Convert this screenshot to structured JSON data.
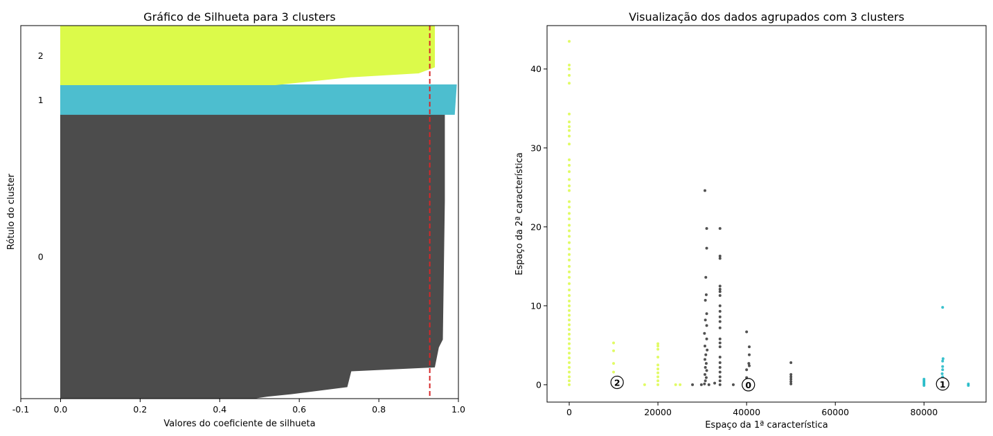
{
  "chart_data": [
    {
      "type": "bar",
      "title": "Gráfico de Silhueta para 3 clusters",
      "xlabel": "Valores do coeficiente de silhueta",
      "ylabel": "Rótulo do cluster",
      "xlim": [
        -0.1,
        1.0
      ],
      "xticks": [
        "-0.1",
        "0.0",
        "0.2",
        "0.4",
        "0.6",
        "0.8",
        "1.0"
      ],
      "xtick_values": [
        -0.1,
        0.0,
        0.2,
        0.4,
        0.6,
        0.8,
        1.0
      ],
      "average_silhouette": 0.928,
      "average_line_color": "#d62728",
      "clusters": [
        {
          "label": "0",
          "color": "#4c4c4c",
          "y_start": 0,
          "y_end": 720,
          "profile": [
            [
              0.48,
              0
            ],
            [
              0.52,
              6
            ],
            [
              0.58,
              12
            ],
            [
              0.72,
              30
            ],
            [
              0.73,
              70
            ],
            [
              0.94,
              80
            ],
            [
              0.95,
              130
            ],
            [
              0.96,
              150
            ],
            [
              0.965,
              500
            ],
            [
              0.965,
              720
            ]
          ]
        },
        {
          "label": "1",
          "color": "#4dbecf",
          "y_start": 720,
          "y_end": 795,
          "profile": [
            [
              0.99,
              0
            ],
            [
              0.995,
              75
            ]
          ]
        },
        {
          "label": "2",
          "color": "#dcfa4a",
          "y_start": 795,
          "y_end": 945,
          "profile": [
            [
              0.54,
              0
            ],
            [
              0.73,
              20
            ],
            [
              0.9,
              30
            ],
            [
              0.94,
              45
            ],
            [
              0.94,
              150
            ]
          ]
        }
      ],
      "ylim": [
        0,
        945
      ]
    },
    {
      "type": "scatter",
      "title": "Visualização dos dados agrupados com 3 clusters",
      "xlabel": "Espaço da 1ª característica",
      "ylabel": "Espaço da 2ª característica",
      "xlim": [
        -5000,
        94000
      ],
      "ylim": [
        -2.2,
        45.5
      ],
      "xticks": [
        "0",
        "20000",
        "40000",
        "60000",
        "80000"
      ],
      "xtick_values": [
        0,
        20000,
        40000,
        60000,
        80000
      ],
      "yticks": [
        "0",
        "10",
        "20",
        "30",
        "40"
      ],
      "ytick_values": [
        0,
        10,
        20,
        30,
        40
      ],
      "series": [
        {
          "cluster": "2",
          "color": "#dcfa4a",
          "points": [
            [
              0,
              43.5
            ],
            [
              0,
              40.5
            ],
            [
              0,
              40
            ],
            [
              0,
              39.2
            ],
            [
              0,
              38.2
            ],
            [
              0,
              34.3
            ],
            [
              0,
              33.3
            ],
            [
              0,
              32.7
            ],
            [
              0,
              32.2
            ],
            [
              0,
              31.5
            ],
            [
              0,
              30.5
            ],
            [
              0,
              28.5
            ],
            [
              0,
              27.8
            ],
            [
              0,
              27
            ],
            [
              0,
              26
            ],
            [
              0,
              25.2
            ],
            [
              0,
              24.6
            ],
            [
              0,
              23.2
            ],
            [
              0,
              22.5
            ],
            [
              0,
              21.7
            ],
            [
              0,
              21
            ],
            [
              0,
              20.2
            ],
            [
              0,
              19.5
            ],
            [
              0,
              18.8
            ],
            [
              0,
              18
            ],
            [
              0,
              17.2
            ],
            [
              0,
              16.5
            ],
            [
              0,
              15.8
            ],
            [
              0,
              15
            ],
            [
              0,
              14.3
            ],
            [
              0,
              13.6
            ],
            [
              0,
              12.8
            ],
            [
              0,
              12
            ],
            [
              0,
              11.3
            ],
            [
              0,
              10.6
            ],
            [
              0,
              10
            ],
            [
              0,
              9.4
            ],
            [
              0,
              8.8
            ],
            [
              0,
              8.2
            ],
            [
              0,
              7.6
            ],
            [
              0,
              7
            ],
            [
              0,
              6.4
            ],
            [
              0,
              5.8
            ],
            [
              0,
              5.2
            ],
            [
              0,
              4.6
            ],
            [
              0,
              4
            ],
            [
              0,
              3.4
            ],
            [
              0,
              2.8
            ],
            [
              0,
              2.2
            ],
            [
              0,
              1.6
            ],
            [
              0,
              1
            ],
            [
              0,
              0.5
            ],
            [
              0,
              0
            ],
            [
              10000,
              5.3
            ],
            [
              10000,
              4.3
            ],
            [
              10000,
              2.7
            ],
            [
              10000,
              1.6
            ],
            [
              10000,
              0.3
            ],
            [
              17000,
              0
            ],
            [
              20000,
              5.2
            ],
            [
              20000,
              4.9
            ],
            [
              20000,
              4.5
            ],
            [
              20000,
              3.5
            ],
            [
              20000,
              2.5
            ],
            [
              20000,
              2
            ],
            [
              20000,
              1.5
            ],
            [
              20000,
              1
            ],
            [
              20000,
              0.5
            ],
            [
              20000,
              0
            ],
            [
              24000,
              0
            ],
            [
              25000,
              0
            ]
          ]
        },
        {
          "cluster": "0",
          "color": "#333333",
          "points": [
            [
              27800,
              0
            ],
            [
              30600,
              24.6
            ],
            [
              31000,
              19.8
            ],
            [
              31000,
              17.3
            ],
            [
              30800,
              13.6
            ],
            [
              30900,
              11.4
            ],
            [
              30700,
              10.7
            ],
            [
              31000,
              9
            ],
            [
              30700,
              8.2
            ],
            [
              31000,
              7.5
            ],
            [
              30500,
              6.5
            ],
            [
              31000,
              5.8
            ],
            [
              30600,
              4.9
            ],
            [
              31100,
              4.4
            ],
            [
              30800,
              3.8
            ],
            [
              30600,
              3.2
            ],
            [
              30900,
              2.7
            ],
            [
              30700,
              2.2
            ],
            [
              31000,
              1.8
            ],
            [
              30600,
              1.3
            ],
            [
              30900,
              0.9
            ],
            [
              30700,
              0.5
            ],
            [
              30500,
              0.1
            ],
            [
              29800,
              0
            ],
            [
              31500,
              0
            ],
            [
              32800,
              0.2
            ],
            [
              34000,
              19.8
            ],
            [
              34000,
              16.3
            ],
            [
              34000,
              16
            ],
            [
              34000,
              12.5
            ],
            [
              34000,
              12.1
            ],
            [
              34000,
              11.8
            ],
            [
              34000,
              11.3
            ],
            [
              34000,
              10
            ],
            [
              34000,
              9.3
            ],
            [
              34000,
              8.6
            ],
            [
              34000,
              8
            ],
            [
              34000,
              7.2
            ],
            [
              34000,
              5.8
            ],
            [
              34000,
              5.3
            ],
            [
              34000,
              4.8
            ],
            [
              34000,
              3.5
            ],
            [
              34000,
              2.8
            ],
            [
              34000,
              2.2
            ],
            [
              34000,
              1.6
            ],
            [
              34000,
              1
            ],
            [
              34000,
              0.5
            ],
            [
              34000,
              0
            ],
            [
              37000,
              0
            ],
            [
              40000,
              6.7
            ],
            [
              40600,
              4.8
            ],
            [
              40600,
              3.8
            ],
            [
              40500,
              2.7
            ],
            [
              40600,
              2.4
            ],
            [
              40000,
              1.9
            ],
            [
              40000,
              0.9
            ],
            [
              50000,
              2.8
            ],
            [
              50000,
              1.3
            ],
            [
              50000,
              1
            ],
            [
              50000,
              0.7
            ],
            [
              50000,
              0.4
            ],
            [
              50000,
              0.1
            ]
          ]
        },
        {
          "cluster": "1",
          "color": "#17b6c4",
          "points": [
            [
              84200,
              9.8
            ],
            [
              84300,
              3.3
            ],
            [
              84200,
              3
            ],
            [
              84200,
              2.3
            ],
            [
              84200,
              1.9
            ],
            [
              84100,
              1.4
            ],
            [
              84200,
              1
            ],
            [
              84300,
              0.6
            ],
            [
              84200,
              0.2
            ],
            [
              80000,
              0.7
            ],
            [
              80000,
              0.5
            ],
            [
              80000,
              0.3
            ],
            [
              80000,
              0.1
            ],
            [
              80000,
              -0.1
            ],
            [
              90000,
              0.1
            ],
            [
              90000,
              -0.1
            ]
          ]
        }
      ],
      "centers": [
        {
          "label": "0",
          "x": 40400,
          "y": 0.0
        },
        {
          "label": "1",
          "x": 84200,
          "y": 0.1
        },
        {
          "label": "2",
          "x": 10800,
          "y": 0.3
        }
      ]
    }
  ]
}
